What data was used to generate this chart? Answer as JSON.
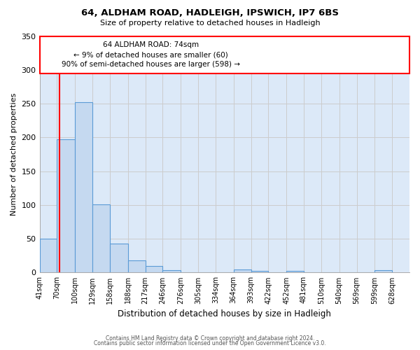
{
  "title": "64, ALDHAM ROAD, HADLEIGH, IPSWICH, IP7 6BS",
  "subtitle": "Size of property relative to detached houses in Hadleigh",
  "xlabel": "Distribution of detached houses by size in Hadleigh",
  "ylabel": "Number of detached properties",
  "bin_labels": [
    "41sqm",
    "70sqm",
    "100sqm",
    "129sqm",
    "158sqm",
    "188sqm",
    "217sqm",
    "246sqm",
    "276sqm",
    "305sqm",
    "334sqm",
    "364sqm",
    "393sqm",
    "422sqm",
    "452sqm",
    "481sqm",
    "510sqm",
    "540sqm",
    "569sqm",
    "599sqm",
    "628sqm"
  ],
  "bin_edges": [
    41,
    70,
    100,
    129,
    158,
    188,
    217,
    246,
    276,
    305,
    334,
    364,
    393,
    422,
    452,
    481,
    510,
    540,
    569,
    599,
    628
  ],
  "bar_heights": [
    50,
    197,
    252,
    101,
    43,
    18,
    10,
    4,
    0,
    0,
    0,
    5,
    3,
    0,
    3,
    0,
    0,
    0,
    0,
    4
  ],
  "bar_color": "#c5d9f0",
  "bar_edge_color": "#5b9bd5",
  "bg_color": "#ffffff",
  "grid_color": "#cccccc",
  "ylim": [
    0,
    350
  ],
  "annotation_line1": "64 ALDHAM ROAD: 74sqm",
  "annotation_line2": "← 9% of detached houses are smaller (60)",
  "annotation_line3": "90% of semi-detached houses are larger (598) →",
  "red_line_x": 74,
  "footer_line1": "Contains HM Land Registry data © Crown copyright and database right 2024.",
  "footer_line2": "Contains public sector information licensed under the Open Government Licence v3.0."
}
